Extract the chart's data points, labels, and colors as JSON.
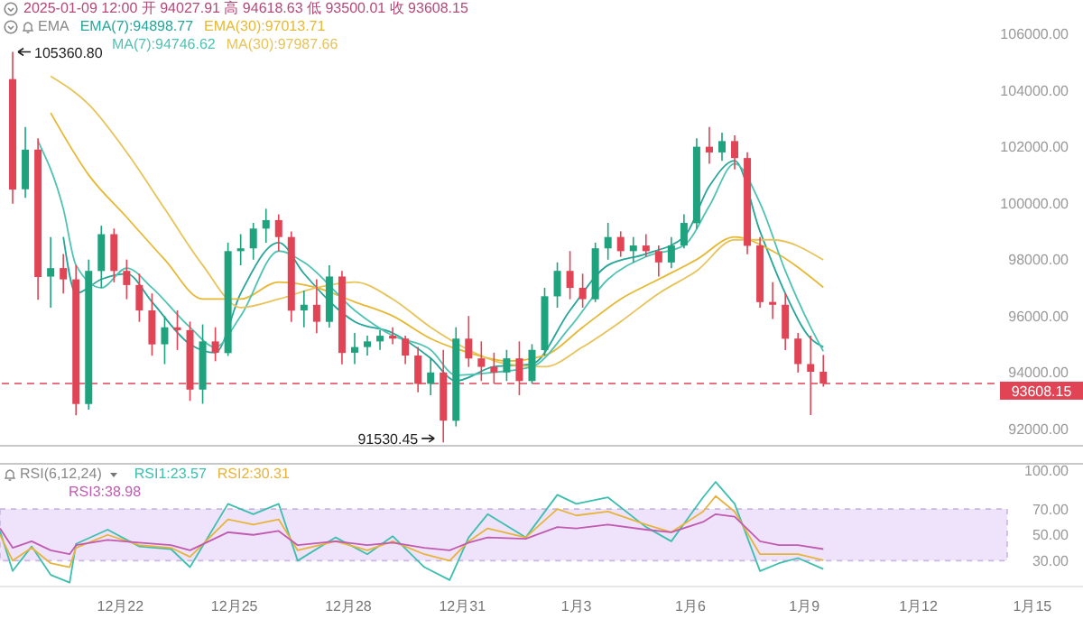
{
  "chart_data": [
    {
      "type": "candlestick",
      "annotations": [
        "2025-01-09 12:00 开 94027.91 高 94618.63 低 93500.01 收 93608.15",
        "EMA",
        {
          "text": "105360.80",
          "x": "2024-12-19T04:00",
          "y": 105360.8
        },
        {
          "text": "91530.45",
          "x": "2024-12-30T12:00",
          "y": 91530.45
        }
      ],
      "x": [
        "2024-12-19T04:00",
        "2024-12-19T12:00",
        "2024-12-19T20:00",
        "2024-12-20T04:00",
        "2024-12-20T12:00",
        "2024-12-20T20:00",
        "2024-12-21T04:00",
        "2024-12-21T12:00",
        "2024-12-21T20:00",
        "2024-12-22T04:00",
        "2024-12-22T12:00",
        "2024-12-22T20:00",
        "2024-12-23T04:00",
        "2024-12-23T12:00",
        "2024-12-23T20:00",
        "2024-12-24T04:00",
        "2024-12-24T12:00",
        "2024-12-24T20:00",
        "2024-12-25T04:00",
        "2024-12-25T12:00",
        "2024-12-25T20:00",
        "2024-12-26T04:00",
        "2024-12-26T12:00",
        "2024-12-26T20:00",
        "2024-12-27T04:00",
        "2024-12-27T12:00",
        "2024-12-27T20:00",
        "2024-12-28T04:00",
        "2024-12-28T12:00",
        "2024-12-28T20:00",
        "2024-12-29T04:00",
        "2024-12-29T12:00",
        "2024-12-29T20:00",
        "2024-12-30T04:00",
        "2024-12-30T12:00",
        "2024-12-30T20:00",
        "2024-12-31T04:00",
        "2024-12-31T12:00",
        "2024-12-31T20:00",
        "2025-01-01T04:00",
        "2025-01-01T12:00",
        "2025-01-01T20:00",
        "2025-01-02T04:00",
        "2025-01-02T12:00",
        "2025-01-02T20:00",
        "2025-01-03T04:00",
        "2025-01-03T12:00",
        "2025-01-03T20:00",
        "2025-01-04T04:00",
        "2025-01-04T12:00",
        "2025-01-04T20:00",
        "2025-01-05T04:00",
        "2025-01-05T12:00",
        "2025-01-05T20:00",
        "2025-01-06T04:00",
        "2025-01-06T12:00",
        "2025-01-06T20:00",
        "2025-01-07T04:00",
        "2025-01-07T12:00",
        "2025-01-07T20:00",
        "2025-01-08T04:00",
        "2025-01-08T12:00",
        "2025-01-08T20:00",
        "2025-01-09T04:00",
        "2025-01-09T12:00"
      ],
      "ohlc": [
        [
          104400,
          105360.8,
          100000,
          100500
        ],
        [
          100500,
          102700,
          100200,
          101900
        ],
        [
          101900,
          102300,
          96600,
          97400
        ],
        [
          97400,
          98800,
          96300,
          97700
        ],
        [
          97700,
          98200,
          96800,
          97300
        ],
        [
          97300,
          97800,
          92500,
          92900
        ],
        [
          92900,
          98000,
          92700,
          97600
        ],
        [
          97600,
          99200,
          97000,
          98900
        ],
        [
          98900,
          99100,
          97200,
          97600
        ],
        [
          97600,
          98000,
          96600,
          97100
        ],
        [
          97100,
          97500,
          95800,
          96200
        ],
        [
          96200,
          96800,
          94600,
          95000
        ],
        [
          95000,
          96000,
          94300,
          95600
        ],
        [
          95600,
          96200,
          94800,
          95500
        ],
        [
          95500,
          95800,
          93000,
          93400
        ],
        [
          93400,
          95700,
          92900,
          95100
        ],
        [
          95100,
          95600,
          94400,
          94700
        ],
        [
          94700,
          98600,
          94600,
          98300
        ],
        [
          98300,
          98900,
          97800,
          98400
        ],
        [
          98400,
          99300,
          98000,
          99100
        ],
        [
          99100,
          99800,
          98600,
          99400
        ],
        [
          99400,
          99600,
          98300,
          98800
        ],
        [
          98800,
          99000,
          95800,
          96200
        ],
        [
          96200,
          96900,
          95600,
          96400
        ],
        [
          96400,
          97300,
          95400,
          95800
        ],
        [
          95800,
          97800,
          95600,
          97400
        ],
        [
          97400,
          97600,
          94300,
          94700
        ],
        [
          94700,
          95400,
          94300,
          94900
        ],
        [
          94900,
          95300,
          94600,
          95100
        ],
        [
          95100,
          95500,
          94800,
          95300
        ],
        [
          95300,
          95600,
          95000,
          95200
        ],
        [
          95200,
          95300,
          94300,
          94600
        ],
        [
          94600,
          94900,
          93300,
          93600
        ],
        [
          93600,
          94500,
          93200,
          94000
        ],
        [
          94000,
          94800,
          91530.45,
          92300
        ],
        [
          92300,
          95600,
          92100,
          95200
        ],
        [
          95200,
          96000,
          94200,
          94500
        ],
        [
          94500,
          95100,
          93700,
          94200
        ],
        [
          94200,
          94700,
          93600,
          94000
        ],
        [
          94000,
          94800,
          93700,
          94500
        ],
        [
          94500,
          95100,
          93200,
          93700
        ],
        [
          93700,
          95000,
          93600,
          94800
        ],
        [
          94800,
          97000,
          94600,
          96700
        ],
        [
          96700,
          97900,
          96300,
          97600
        ],
        [
          97600,
          98300,
          96600,
          97000
        ],
        [
          97000,
          97500,
          96300,
          96600
        ],
        [
          96600,
          98600,
          96500,
          98400
        ],
        [
          98400,
          99300,
          98000,
          98800
        ],
        [
          98800,
          99000,
          98100,
          98300
        ],
        [
          98300,
          98800,
          97900,
          98500
        ],
        [
          98500,
          98900,
          98100,
          98300
        ],
        [
          98300,
          98500,
          97400,
          97900
        ],
        [
          97900,
          98800,
          97700,
          98500
        ],
        [
          98500,
          99600,
          98400,
          99300
        ],
        [
          99300,
          102300,
          99100,
          102000
        ],
        [
          102000,
          102700,
          101400,
          101800
        ],
        [
          101800,
          102500,
          101500,
          102200
        ],
        [
          102200,
          102400,
          101200,
          101600
        ],
        [
          101600,
          101800,
          98200,
          98500
        ],
        [
          98500,
          98800,
          96300,
          96500
        ],
        [
          96500,
          97200,
          95900,
          96400
        ],
        [
          96400,
          96800,
          94800,
          95200
        ],
        [
          95200,
          95400,
          94000,
          94300
        ],
        [
          94300,
          95300,
          92500,
          94027.91
        ],
        [
          94027.91,
          94618.63,
          93500.01,
          93608.15
        ]
      ],
      "colors": [
        "#e04455",
        "#1fa37f",
        "#e04455",
        "#1fa37f",
        "#e04455",
        "#e04455",
        "#1fa37f",
        "#1fa37f",
        "#e04455",
        "#e04455",
        "#e04455",
        "#e04455",
        "#1fa37f",
        "#e04455",
        "#e04455",
        "#1fa37f",
        "#e04455",
        "#1fa37f",
        "#1fa37f",
        "#1fa37f",
        "#1fa37f",
        "#e04455",
        "#e04455",
        "#1fa37f",
        "#e04455",
        "#1fa37f",
        "#e04455",
        "#1fa37f",
        "#1fa37f",
        "#1fa37f",
        "#e04455",
        "#e04455",
        "#e04455",
        "#1fa37f",
        "#e04455",
        "#1fa37f",
        "#e04455",
        "#e04455",
        "#e04455",
        "#1fa37f",
        "#e04455",
        "#1fa37f",
        "#1fa37f",
        "#1fa37f",
        "#e04455",
        "#e04455",
        "#1fa37f",
        "#1fa37f",
        "#e04455",
        "#1fa37f",
        "#e04455",
        "#e04455",
        "#1fa37f",
        "#1fa37f",
        "#1fa37f",
        "#e04455",
        "#1fa37f",
        "#e04455",
        "#e04455",
        "#e04455",
        "#e04455",
        "#e04455",
        "#e04455",
        "#e04455",
        "#e04455"
      ],
      "series": [
        {
          "type": "line",
          "name": "EMA(7):94898.77",
          "color": "#26a69a",
          "x": [
            "2024-12-20T12:00",
            "2024-12-20T20:00",
            "2024-12-21T12:00",
            "2024-12-22T04:00",
            "2024-12-22T20:00",
            "2024-12-23T20:00",
            "2024-12-24T12:00",
            "2024-12-25T04:00",
            "2024-12-26T04:00",
            "2024-12-26T20:00",
            "2024-12-28T04:00",
            "2024-12-29T04:00",
            "2024-12-30T04:00",
            "2024-12-30T20:00",
            "2024-12-31T20:00",
            "2025-01-01T20:00",
            "2025-01-02T20:00",
            "2025-01-03T20:00",
            "2025-01-04T20:00",
            "2025-01-05T20:00",
            "2025-01-06T12:00",
            "2025-01-07T04:00",
            "2025-01-07T20:00",
            "2025-01-08T12:00",
            "2025-01-09T04:00",
            "2025-01-09T12:00"
          ],
          "values": [
            98800,
            96800,
            97300,
            97500,
            96500,
            95000,
            94700,
            96800,
            98600,
            97500,
            95800,
            95400,
            94500,
            93700,
            94200,
            94300,
            96200,
            97800,
            98200,
            98800,
            100600,
            101500,
            99000,
            96800,
            95200,
            94898.77
          ]
        },
        {
          "type": "line",
          "name": "EMA(30):97013.71",
          "color": "#e6b833",
          "x": [
            "2024-12-20T04:00",
            "2024-12-21T04:00",
            "2024-12-22T04:00",
            "2024-12-23T04:00",
            "2024-12-24T04:00",
            "2024-12-25T04:00",
            "2024-12-26T04:00",
            "2024-12-27T04:00",
            "2024-12-28T04:00",
            "2024-12-29T04:00",
            "2024-12-30T04:00",
            "2024-12-31T04:00",
            "2025-01-01T04:00",
            "2025-01-02T04:00",
            "2025-01-03T04:00",
            "2025-01-04T04:00",
            "2025-01-05T04:00",
            "2025-01-06T04:00",
            "2025-01-07T04:00",
            "2025-01-08T04:00",
            "2025-01-09T12:00"
          ],
          "values": [
            103200,
            101000,
            99500,
            98000,
            96600,
            96600,
            97200,
            97000,
            96500,
            96000,
            95200,
            94700,
            94400,
            94600,
            95600,
            96600,
            97300,
            98000,
            98800,
            98300,
            97013.71
          ]
        },
        {
          "type": "line",
          "name": "MA(7):94746.62",
          "color": "#4fc3b3",
          "x": [
            "2024-12-19T20:00",
            "2024-12-20T12:00",
            "2024-12-20T20:00",
            "2024-12-21T12:00",
            "2024-12-22T04:00",
            "2024-12-22T20:00",
            "2024-12-23T20:00",
            "2024-12-24T12:00",
            "2024-12-25T04:00",
            "2024-12-26T04:00",
            "2024-12-26T20:00",
            "2024-12-28T04:00",
            "2024-12-29T04:00",
            "2024-12-30T04:00",
            "2024-12-30T20:00",
            "2024-12-31T20:00",
            "2025-01-01T20:00",
            "2025-01-02T20:00",
            "2025-01-03T20:00",
            "2025-01-04T20:00",
            "2025-01-05T20:00",
            "2025-01-06T12:00",
            "2025-01-07T04:00",
            "2025-01-07T20:00",
            "2025-01-08T12:00",
            "2025-01-09T04:00",
            "2025-01-09T12:00"
          ],
          "values": [
            102200,
            99800,
            97800,
            97000,
            97700,
            97000,
            95600,
            94900,
            96000,
            98300,
            97900,
            96200,
            95300,
            94800,
            93900,
            94000,
            94200,
            95600,
            97300,
            98100,
            98500,
            99900,
            101400,
            100000,
            97600,
            95600,
            94746.62
          ]
        },
        {
          "type": "line",
          "name": "MA(30):97987.66",
          "color": "#e8c35a",
          "x": [
            "2024-12-20T04:00",
            "2024-12-21T04:00",
            "2024-12-22T04:00",
            "2024-12-23T04:00",
            "2024-12-24T04:00",
            "2024-12-25T04:00",
            "2024-12-26T04:00",
            "2024-12-27T04:00",
            "2024-12-28T04:00",
            "2024-12-29T04:00",
            "2024-12-30T04:00",
            "2024-12-31T04:00",
            "2025-01-01T04:00",
            "2025-01-02T04:00",
            "2025-01-03T04:00",
            "2025-01-04T04:00",
            "2025-01-05T04:00",
            "2025-01-06T04:00",
            "2025-01-07T04:00",
            "2025-01-08T04:00",
            "2025-01-09T12:00"
          ],
          "values": [
            104500,
            103500,
            101800,
            99800,
            97800,
            96300,
            96600,
            97000,
            97200,
            96600,
            95600,
            94800,
            94300,
            94200,
            94900,
            95800,
            96800,
            97600,
            98700,
            98700,
            97987.66
          ]
        }
      ],
      "xlim": [
        "2024-12-18T20:00",
        "2025-01-16T08:00"
      ],
      "ylim": [
        91400,
        107200
      ],
      "yticks": [
        {
          "value": 92000,
          "label": "92000.00"
        },
        {
          "value": 94000,
          "label": "94000.00"
        },
        {
          "value": 96000,
          "label": "96000.00"
        },
        {
          "value": 98000,
          "label": "98000.00"
        },
        {
          "value": 100000,
          "label": "100000.00"
        },
        {
          "value": 102000,
          "label": "102000.00"
        },
        {
          "value": 104000,
          "label": "104000.00"
        },
        {
          "value": 106000,
          "label": "106000.00"
        }
      ],
      "ref_lines": [
        {
          "axis": "y",
          "value": 93608.15,
          "label": "93608.15",
          "color": "#e04455",
          "line_style": "dashed"
        }
      ],
      "legend": "top left",
      "tick_labels": "y"
    },
    {
      "type": "line",
      "title": "RSI(6,12,24)",
      "x": [
        "2024-12-18T20:00",
        "2024-12-19T04:00",
        "2024-12-19T16:00",
        "2024-12-20T04:00",
        "2024-12-20T16:00",
        "2024-12-20T20:00",
        "2024-12-21T16:00",
        "2024-12-22T12:00",
        "2024-12-23T08:00",
        "2024-12-23T20:00",
        "2024-12-24T20:00",
        "2024-12-25T12:00",
        "2024-12-26T04:00",
        "2024-12-26T16:00",
        "2024-12-27T16:00",
        "2024-12-28T12:00",
        "2024-12-29T04:00",
        "2024-12-30T00:00",
        "2024-12-30T16:00",
        "2024-12-31T04:00",
        "2024-12-31T16:00",
        "2025-01-01T16:00",
        "2025-01-02T12:00",
        "2025-01-03T00:00",
        "2025-01-03T20:00",
        "2025-01-04T20:00",
        "2025-01-05T12:00",
        "2025-01-06T08:00",
        "2025-01-06T16:00",
        "2025-01-07T04:00",
        "2025-01-07T20:00",
        "2025-01-08T08:00",
        "2025-01-08T20:00",
        "2025-01-09T12:00"
      ],
      "series": [
        {
          "name": "RSI1:23.57",
          "color": "#3cbfae",
          "values": [
            53,
            22,
            41,
            19,
            13,
            43,
            54,
            41,
            39,
            25,
            74,
            66,
            74,
            30,
            48,
            35,
            49,
            25,
            15,
            48,
            66,
            48,
            81,
            74,
            79,
            56,
            45,
            79,
            91,
            74,
            22,
            28,
            32,
            23.57
          ]
        },
        {
          "name": "RSI2:30.31",
          "color": "#e6b43c",
          "values": [
            50,
            30,
            40,
            28,
            25,
            40,
            50,
            42,
            40,
            33,
            62,
            58,
            62,
            38,
            45,
            38,
            45,
            35,
            30,
            45,
            55,
            48,
            70,
            65,
            68,
            58,
            52,
            68,
            80,
            68,
            35,
            35,
            35,
            30.31
          ]
        },
        {
          "name": "RSI3:38.98",
          "color": "#c05bb0",
          "values": [
            55,
            40,
            45,
            38,
            35,
            42,
            46,
            44,
            42,
            38,
            52,
            50,
            53,
            42,
            45,
            42,
            44,
            40,
            38,
            44,
            48,
            47,
            56,
            55,
            58,
            54,
            52,
            60,
            66,
            64,
            45,
            42,
            42,
            38.98
          ]
        }
      ],
      "xlim": [
        "2024-12-18T20:00",
        "2025-01-16T08:00"
      ],
      "ylim": [
        10,
        105
      ],
      "xticks": [
        {
          "value": "2024-12-22",
          "label": "12月22"
        },
        {
          "value": "2024-12-25",
          "label": "12月25"
        },
        {
          "value": "2024-12-28",
          "label": "12月28"
        },
        {
          "value": "2024-12-31",
          "label": "12月31"
        },
        {
          "value": "2025-01-03",
          "label": "1月3"
        },
        {
          "value": "2025-01-06",
          "label": "1月6"
        },
        {
          "value": "2025-01-09",
          "label": "1月9"
        },
        {
          "value": "2025-01-12",
          "label": "1月12"
        },
        {
          "value": "2025-01-15",
          "label": "1月15"
        }
      ],
      "yticks": [
        {
          "value": 30,
          "label": "30.00"
        },
        {
          "value": 50,
          "label": "50.00"
        },
        {
          "value": 70,
          "label": "70.00"
        },
        {
          "value": 100,
          "label": "100.00"
        }
      ],
      "bands": [
        {
          "axis": "y",
          "from": 30,
          "to": 70,
          "color": "#efe3fb"
        }
      ],
      "legend": "top left"
    }
  ]
}
